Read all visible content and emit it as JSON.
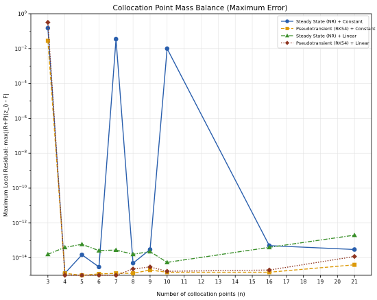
{
  "chart_data": {
    "type": "line",
    "title": "Collocation Point Mass Balance (Maximum Error)",
    "xlabel": "Number of collocation points (n)",
    "ylabel": "Maximum Local Residual: max|(R+P)(z_i) - F|",
    "y_scale": "log",
    "ylim": [
      1e-15,
      1
    ],
    "y_ticks": [
      {
        "exp": 0,
        "label": "10",
        "sup": "0"
      },
      {
        "exp": -2,
        "label": "10",
        "sup": "−2"
      },
      {
        "exp": -4,
        "label": "10",
        "sup": "−4"
      },
      {
        "exp": -6,
        "label": "10",
        "sup": "−6"
      },
      {
        "exp": -8,
        "label": "10",
        "sup": "−8"
      },
      {
        "exp": -10,
        "label": "10",
        "sup": "−10"
      },
      {
        "exp": -12,
        "label": "10",
        "sup": "−12"
      },
      {
        "exp": -14,
        "label": "10",
        "sup": "−14"
      }
    ],
    "xlim": [
      2,
      22
    ],
    "x_ticks": [
      3,
      4,
      5,
      6,
      7,
      8,
      9,
      10,
      11,
      12,
      13,
      14,
      15,
      16,
      17,
      18,
      19,
      20,
      21
    ],
    "grid": true,
    "legend_position": "top-right",
    "series": [
      {
        "name": "Steady State (NR) + Constant",
        "color": "#2a5fad",
        "line_style": "solid",
        "marker": "circle",
        "x": [
          3,
          4,
          5,
          6,
          7,
          8,
          9,
          10,
          16,
          21
        ],
        "y": [
          0.15,
          1.3e-15,
          1.5e-14,
          3e-15,
          0.035,
          5e-15,
          3e-14,
          0.01,
          5e-14,
          3e-14
        ]
      },
      {
        "name": "Pseudotransient (RK54) + Constant",
        "color": "#dc9a0a",
        "line_style": "dashed",
        "marker": "square",
        "x": [
          3,
          4,
          5,
          6,
          7,
          8,
          9,
          10,
          16,
          21
        ],
        "y": [
          0.028,
          1.3e-15,
          1e-15,
          1.2e-15,
          1.3e-15,
          1.3e-15,
          2e-15,
          1.5e-15,
          1.5e-15,
          4e-15
        ]
      },
      {
        "name": "Steady State (NR) + Linear",
        "color": "#3a8f2a",
        "line_style": "dashdot",
        "marker": "triangle",
        "x": [
          3,
          4,
          5,
          6,
          7,
          8,
          9,
          10,
          16,
          21
        ],
        "y": [
          1.6e-14,
          4e-14,
          6e-14,
          2.6e-14,
          2.8e-14,
          1.6e-14,
          2.3e-14,
          5.5e-15,
          4e-14,
          2e-13
        ]
      },
      {
        "name": "Pseudotransient (RK54) + Linear",
        "color": "#8e3520",
        "line_style": "dotted",
        "marker": "diamond",
        "x": [
          3,
          4,
          5,
          6,
          7,
          8,
          9,
          10,
          16,
          21
        ],
        "y": [
          0.32,
          1e-15,
          1e-15,
          1e-15,
          1e-15,
          2.3e-15,
          3e-15,
          1.7e-15,
          2e-15,
          1.2e-14
        ]
      }
    ]
  }
}
